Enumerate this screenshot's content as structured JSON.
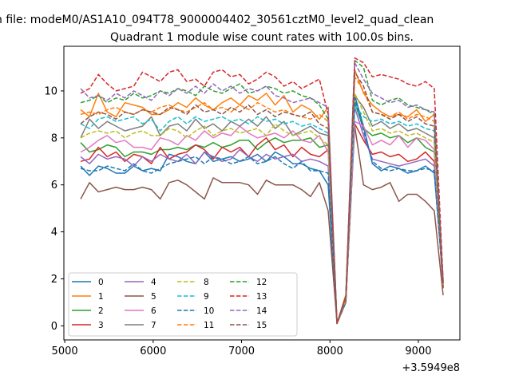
{
  "chart_data": {
    "type": "line",
    "suptitle": "n file: modeM0/AS1A10_094T78_9000004402_30561cztM0_level2_quad_clean",
    "title": "Quadrant 1 module wise count rates with 100.0s bins.",
    "xlabel": "",
    "ylabel": "",
    "x_offset_label": "+3.5949e8",
    "xlim": [
      4990,
      9470
    ],
    "ylim": [
      -0.6,
      11.9
    ],
    "xticks": [
      5000,
      6000,
      7000,
      8000,
      9000
    ],
    "xtick_labels": [
      "5000",
      "6000",
      "7000",
      "8000",
      "9000"
    ],
    "yticks": [
      0,
      2,
      4,
      6,
      8,
      10
    ],
    "ytick_labels": [
      "0",
      "2",
      "4",
      "6",
      "8",
      "10"
    ],
    "legend_position": "lower-left",
    "legend_columns": 4,
    "x": [
      5180,
      5280,
      5380,
      5480,
      5580,
      5680,
      5780,
      5880,
      5980,
      6080,
      6180,
      6280,
      6380,
      6480,
      6580,
      6680,
      6780,
      6880,
      6980,
      7080,
      7180,
      7280,
      7380,
      7480,
      7580,
      7680,
      7780,
      7880,
      7980,
      8080,
      8180,
      8280,
      8380,
      8480,
      8580,
      8680,
      8780,
      8880,
      8980,
      9080,
      9180,
      9280
    ],
    "series": [
      {
        "name": "0",
        "color": "#1f77b4",
        "dash": "solid",
        "values": [
          6.8,
          6.4,
          6.8,
          6.7,
          6.5,
          6.5,
          6.8,
          6.6,
          6.7,
          6.6,
          7.3,
          7.2,
          7.0,
          6.9,
          7.4,
          7.0,
          7.1,
          7.2,
          7.0,
          7.1,
          7.3,
          7.0,
          7.4,
          7.2,
          6.9,
          6.9,
          6.7,
          6.6,
          6.0,
          0.1,
          1.0,
          9.8,
          8.5,
          6.9,
          6.6,
          6.8,
          6.7,
          6.5,
          6.6,
          6.8,
          6.5,
          1.9
        ]
      },
      {
        "name": "1",
        "color": "#ff7f0e",
        "dash": "solid",
        "values": [
          9.2,
          8.9,
          9.9,
          9.1,
          8.9,
          9.5,
          9.4,
          9.3,
          9.0,
          9.0,
          9.2,
          9.5,
          9.3,
          9.7,
          9.4,
          9.2,
          9.5,
          9.7,
          9.4,
          9.8,
          9.6,
          9.9,
          9.4,
          9.8,
          9.1,
          9.4,
          9.2,
          8.8,
          9.3,
          0.1,
          1.2,
          10.9,
          9.9,
          9.4,
          9.1,
          8.9,
          9.0,
          8.9,
          9.2,
          8.7,
          9.0,
          1.8
        ]
      },
      {
        "name": "2",
        "color": "#2ca02c",
        "dash": "solid",
        "values": [
          7.8,
          7.4,
          7.5,
          7.7,
          7.6,
          7.2,
          7.4,
          7.4,
          7.3,
          7.5,
          7.5,
          7.6,
          7.5,
          7.7,
          7.6,
          7.8,
          7.6,
          7.7,
          7.9,
          7.9,
          7.5,
          7.8,
          8.0,
          7.8,
          7.9,
          7.9,
          8.0,
          7.6,
          7.7,
          0.1,
          1.3,
          9.5,
          8.4,
          8.1,
          8.2,
          8.0,
          8.1,
          7.8,
          8.0,
          7.6,
          7.4,
          1.7
        ]
      },
      {
        "name": "3",
        "color": "#d62728",
        "dash": "solid",
        "values": [
          7.0,
          7.1,
          7.6,
          7.2,
          7.4,
          7.0,
          7.3,
          7.2,
          6.9,
          7.6,
          7.1,
          7.3,
          7.4,
          7.7,
          7.5,
          7.1,
          7.6,
          7.4,
          7.6,
          7.2,
          7.7,
          8.0,
          7.5,
          7.7,
          7.2,
          7.6,
          7.3,
          7.2,
          7.5,
          0.1,
          1.1,
          8.6,
          7.9,
          7.3,
          7.4,
          7.2,
          7.3,
          7.0,
          7.1,
          7.4,
          7.0,
          1.6
        ]
      },
      {
        "name": "4",
        "color": "#9467bd",
        "dash": "solid",
        "values": [
          7.2,
          6.9,
          7.3,
          7.1,
          7.2,
          7.1,
          6.8,
          7.2,
          7.0,
          7.3,
          7.1,
          7.0,
          7.3,
          6.9,
          7.4,
          7.2,
          7.0,
          7.1,
          7.5,
          7.2,
          7.0,
          7.3,
          7.1,
          7.2,
          7.3,
          7.0,
          7.1,
          7.0,
          6.8,
          0.1,
          1.2,
          9.3,
          8.1,
          7.1,
          7.0,
          6.9,
          6.8,
          6.9,
          7.0,
          7.1,
          6.8,
          1.8
        ]
      },
      {
        "name": "5",
        "color": "#8c564b",
        "dash": "solid",
        "values": [
          5.4,
          6.1,
          5.7,
          5.8,
          5.9,
          5.8,
          5.8,
          5.9,
          5.8,
          5.4,
          6.1,
          6.2,
          6.0,
          5.7,
          5.4,
          6.3,
          6.1,
          6.1,
          6.1,
          6.0,
          5.6,
          6.2,
          6.0,
          6.0,
          6.0,
          5.8,
          5.5,
          6.1,
          4.9,
          0.1,
          1.1,
          8.5,
          6.0,
          5.8,
          5.9,
          6.1,
          5.3,
          5.6,
          5.6,
          5.3,
          4.9,
          1.3
        ]
      },
      {
        "name": "6",
        "color": "#e377c2",
        "dash": "solid",
        "values": [
          7.4,
          7.6,
          7.9,
          8.1,
          7.8,
          7.9,
          7.6,
          7.6,
          7.5,
          8.0,
          7.9,
          7.7,
          8.1,
          7.9,
          8.3,
          8.0,
          8.2,
          8.1,
          8.5,
          8.2,
          8.0,
          8.1,
          8.2,
          8.0,
          8.3,
          7.9,
          7.8,
          8.1,
          7.4,
          0.1,
          1.2,
          8.7,
          8.5,
          7.7,
          7.9,
          7.7,
          8.1,
          7.6,
          8.0,
          7.9,
          7.5,
          1.6
        ]
      },
      {
        "name": "7",
        "color": "#7f7f7f",
        "dash": "solid",
        "values": [
          8.0,
          8.8,
          8.4,
          8.7,
          8.5,
          8.3,
          8.4,
          8.5,
          8.9,
          8.1,
          8.5,
          8.6,
          8.3,
          8.8,
          8.4,
          8.6,
          8.3,
          8.7,
          8.5,
          8.8,
          8.5,
          8.9,
          8.4,
          8.7,
          8.1,
          8.3,
          8.5,
          8.2,
          8.1,
          0.1,
          1.3,
          9.8,
          9.3,
          8.5,
          8.7,
          8.4,
          8.6,
          8.3,
          8.4,
          8.2,
          8.0,
          1.8
        ]
      },
      {
        "name": "8",
        "color": "#bcbd22",
        "dash": "dashed",
        "values": [
          8.0,
          8.2,
          8.3,
          8.2,
          8.3,
          8.0,
          8.2,
          8.3,
          8.1,
          8.1,
          8.4,
          8.3,
          8.0,
          8.3,
          8.5,
          8.1,
          8.3,
          8.4,
          8.2,
          8.3,
          8.4,
          8.1,
          8.6,
          8.3,
          8.1,
          8.2,
          8.3,
          8.0,
          7.7,
          0.1,
          1.3,
          9.9,
          9.1,
          8.3,
          8.4,
          8.2,
          8.3,
          8.1,
          8.2,
          8.0,
          7.8,
          1.7
        ]
      },
      {
        "name": "9",
        "color": "#17becf",
        "dash": "dashed",
        "values": [
          8.6,
          8.4,
          8.8,
          8.9,
          8.7,
          8.8,
          8.9,
          8.6,
          8.8,
          8.3,
          8.7,
          8.9,
          8.6,
          8.9,
          8.7,
          8.8,
          8.9,
          8.7,
          8.8,
          8.6,
          8.9,
          8.7,
          8.8,
          8.6,
          8.7,
          8.5,
          8.6,
          8.4,
          8.2,
          0.1,
          1.2,
          9.4,
          8.9,
          8.7,
          8.8,
          8.6,
          8.7,
          8.5,
          8.6,
          8.4,
          8.3,
          1.9
        ]
      },
      {
        "name": "10",
        "color": "#1f77b4",
        "dash": "dashed",
        "values": [
          6.7,
          6.6,
          6.6,
          6.8,
          6.7,
          6.6,
          6.9,
          6.6,
          6.5,
          6.7,
          6.9,
          7.0,
          7.1,
          7.2,
          6.9,
          7.2,
          7.1,
          6.9,
          7.0,
          7.2,
          6.9,
          7.0,
          7.2,
          6.9,
          6.7,
          7.0,
          6.6,
          6.6,
          6.5,
          0.1,
          1.2,
          9.7,
          8.3,
          7.0,
          6.7,
          6.6,
          6.7,
          6.6,
          6.6,
          6.7,
          6.6,
          1.8
        ]
      },
      {
        "name": "11",
        "color": "#ff7f0e",
        "dash": "dashed",
        "values": [
          9.0,
          9.1,
          9.0,
          9.2,
          9.3,
          9.1,
          9.0,
          9.2,
          9.1,
          9.3,
          9.4,
          9.2,
          9.1,
          9.3,
          9.5,
          9.2,
          9.3,
          9.1,
          9.4,
          9.2,
          9.5,
          9.3,
          9.1,
          9.2,
          9.0,
          8.9,
          8.8,
          9.0,
          8.7,
          0.1,
          1.1,
          10.6,
          10.0,
          9.1,
          9.0,
          8.9,
          9.1,
          8.8,
          9.0,
          8.9,
          8.7,
          1.7
        ]
      },
      {
        "name": "12",
        "color": "#2ca02c",
        "dash": "dashed",
        "values": [
          9.5,
          9.6,
          9.8,
          9.5,
          9.7,
          9.6,
          9.9,
          9.7,
          9.8,
          10.0,
          9.9,
          10.1,
          10.0,
          9.8,
          10.2,
          10.0,
          9.9,
          10.1,
          10.3,
          9.9,
          10.0,
          10.2,
          10.1,
          9.9,
          10.0,
          9.8,
          9.7,
          9.4,
          8.8,
          0.1,
          1.3,
          11.3,
          11.0,
          9.6,
          9.4,
          9.6,
          9.7,
          9.4,
          9.3,
          9.2,
          9.0,
          1.8
        ]
      },
      {
        "name": "13",
        "color": "#d62728",
        "dash": "dashed",
        "values": [
          9.9,
          10.1,
          10.7,
          10.3,
          10.0,
          10.1,
          10.2,
          10.8,
          10.6,
          10.4,
          10.8,
          10.9,
          10.4,
          10.5,
          10.2,
          10.8,
          10.9,
          10.6,
          10.7,
          10.3,
          10.5,
          10.8,
          10.6,
          10.2,
          10.4,
          10.1,
          10.3,
          10.5,
          9.0,
          0.1,
          1.3,
          11.4,
          11.2,
          10.6,
          10.7,
          10.6,
          10.5,
          10.3,
          10.2,
          10.4,
          10.1,
          1.9
        ]
      },
      {
        "name": "14",
        "color": "#9467bd",
        "dash": "dashed",
        "values": [
          10.1,
          9.7,
          9.8,
          9.6,
          9.9,
          9.7,
          10.0,
          9.8,
          9.6,
          10.0,
          9.8,
          10.1,
          9.9,
          10.2,
          9.9,
          10.3,
          10.0,
          10.2,
          9.9,
          10.1,
          10.0,
          10.2,
          9.8,
          9.7,
          9.5,
          9.6,
          9.7,
          9.5,
          9.3,
          0.1,
          1.2,
          11.2,
          10.5,
          9.9,
          9.7,
          9.5,
          9.6,
          9.3,
          9.4,
          9.2,
          9.1,
          1.8
        ]
      },
      {
        "name": "15",
        "color": "#8c564b",
        "dash": "dashed",
        "values": [
          8.6,
          8.9,
          9.1,
          9.0,
          8.8,
          9.1,
          9.0,
          9.2,
          9.1,
          9.0,
          9.3,
          9.2,
          9.0,
          9.4,
          9.1,
          9.2,
          9.0,
          9.3,
          9.1,
          9.4,
          9.0,
          9.2,
          8.9,
          9.1,
          9.0,
          8.9,
          9.1,
          8.6,
          8.4,
          0.1,
          1.2,
          10.8,
          10.2,
          9.1,
          9.0,
          8.8,
          9.0,
          8.7,
          8.9,
          8.6,
          8.5,
          1.6
        ]
      }
    ]
  }
}
